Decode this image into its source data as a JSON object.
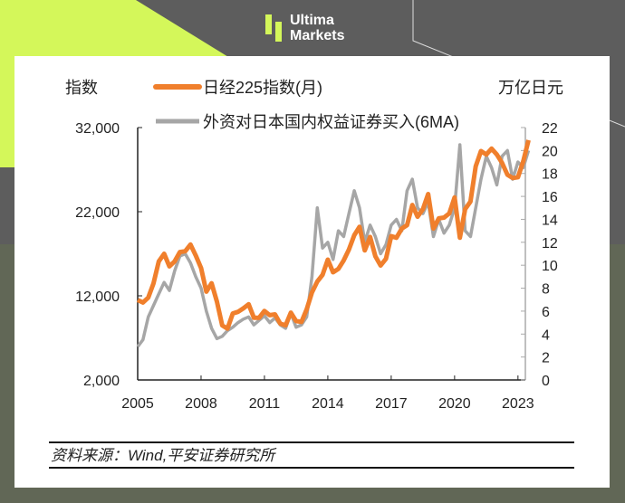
{
  "brand": {
    "line1": "Ultima",
    "line2": "Markets",
    "accent": "#d4f75a"
  },
  "source": "资料来源：Wind,平安证券研究所",
  "chart_data": {
    "type": "line",
    "title": "",
    "ylabel_left": "指数",
    "ylabel_right": "万亿日元",
    "x_ticks": [
      "2005",
      "2008",
      "2011",
      "2014",
      "2017",
      "2020",
      "2023"
    ],
    "x_range": [
      2005,
      2023.35
    ],
    "yleft_ticks": [
      "32,000",
      "22,000",
      "12,000",
      "2,000"
    ],
    "yleft_range": [
      2000,
      32000
    ],
    "yright_ticks": [
      "22",
      "20",
      "18",
      "16",
      "14",
      "12",
      "10",
      "8",
      "6",
      "4",
      "2",
      "0"
    ],
    "yright_range": [
      0,
      22
    ],
    "grid": false,
    "legend_placement": "top",
    "series": [
      {
        "name": "日经225指数(月)",
        "axis": "left",
        "color": "#f07f2c",
        "x_start": 2005,
        "x_step": 0.25,
        "values": [
          11500,
          11200,
          11800,
          13500,
          16100,
          17000,
          15500,
          16100,
          17200,
          17300,
          18100,
          16800,
          15300,
          12500,
          13500,
          11300,
          8500,
          8100,
          9900,
          10100,
          10500,
          11000,
          9400,
          9400,
          10200,
          9700,
          9800,
          8700,
          8500,
          10000,
          9000,
          8900,
          10400,
          12400,
          13700,
          14500,
          16300,
          14800,
          15200,
          16200,
          17500,
          19200,
          20200,
          17400,
          19000,
          16700,
          15600,
          16400,
          19100,
          18900,
          20000,
          20400,
          22800,
          21400,
          22300,
          24100,
          20000,
          21200,
          21300,
          21800,
          23700,
          18900,
          22300,
          23200,
          27400,
          29200,
          28800,
          29500,
          28800,
          27800,
          26400,
          26000,
          26100,
          28000,
          30500
        ]
      },
      {
        "name": "外资对日本国内权益证券买入(6MA)",
        "axis": "right",
        "color": "#a6a6a6",
        "x_start": 2005,
        "x_step": 0.25,
        "values": [
          2.9,
          3.5,
          5.5,
          6.5,
          7.5,
          8.5,
          7.8,
          9.5,
          10.8,
          11.0,
          10.2,
          9.0,
          8.0,
          6.0,
          4.5,
          3.6,
          3.8,
          4.3,
          4.6,
          5.0,
          5.3,
          5.5,
          4.8,
          5.2,
          5.6,
          5.0,
          5.4,
          4.8,
          4.5,
          5.8,
          4.6,
          4.8,
          5.5,
          9.0,
          15.0,
          11.5,
          12.0,
          10.5,
          13.0,
          12.5,
          14.5,
          16.5,
          15.0,
          12.0,
          13.5,
          12.5,
          11.0,
          11.8,
          13.5,
          14.0,
          13.0,
          16.5,
          17.5,
          15.0,
          14.5,
          15.5,
          12.5,
          14.0,
          12.8,
          13.5,
          15.0,
          20.5,
          13.0,
          12.5,
          15.0,
          17.5,
          19.5,
          18.5,
          17.0,
          19.5,
          20.0,
          17.5,
          19.0,
          18.5,
          20.0
        ]
      }
    ]
  }
}
